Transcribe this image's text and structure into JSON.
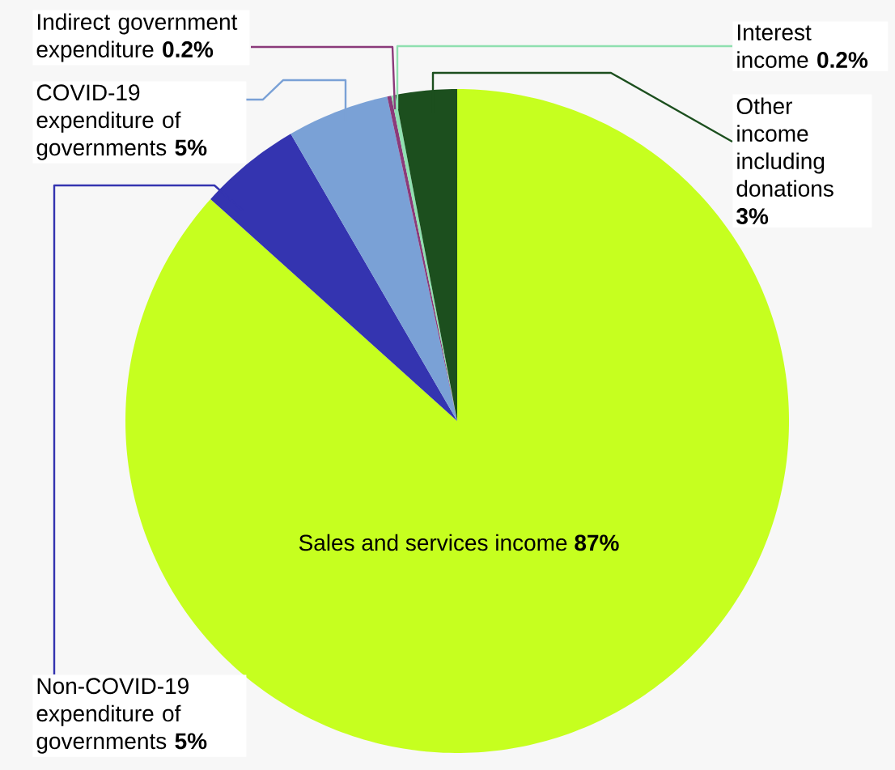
{
  "chart_data": {
    "type": "pie",
    "categories": [
      "Sales and services income",
      "Non-COVID-19 expenditure of governments",
      "COVID-19 expenditure of governments",
      "Indirect government expenditure",
      "Interest income",
      "Other income including donations"
    ],
    "values": [
      87,
      5,
      5,
      0.2,
      0.2,
      3
    ],
    "value_labels": [
      "87%",
      "5%",
      "5%",
      "0.2%",
      "0.2%",
      "3%"
    ],
    "colors": [
      "#c6ff1f",
      "#3434b0",
      "#7aa1d6",
      "#8b3a7a",
      "#8fe0b0",
      "#1c4f1e"
    ]
  }
}
